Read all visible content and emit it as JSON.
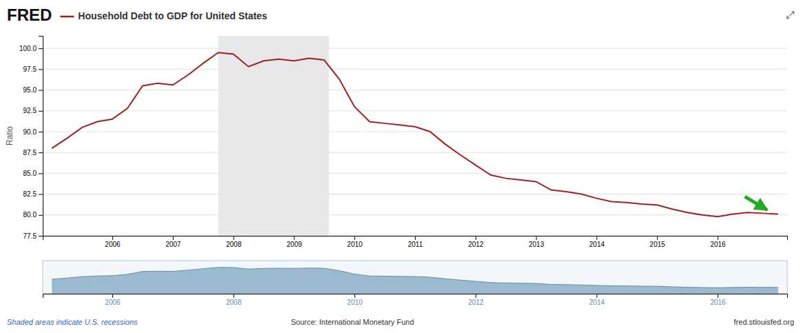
{
  "chart_data": [
    {
      "type": "line",
      "title": "Household Debt to GDP for United States",
      "ylabel": "Ratio",
      "x": [
        2005.0,
        2005.25,
        2005.5,
        2005.75,
        2006.0,
        2006.25,
        2006.5,
        2006.75,
        2007.0,
        2007.25,
        2007.5,
        2007.75,
        2008.0,
        2008.25,
        2008.5,
        2008.75,
        2009.0,
        2009.25,
        2009.5,
        2009.75,
        2010.0,
        2010.25,
        2010.5,
        2010.75,
        2011.0,
        2011.25,
        2011.5,
        2011.75,
        2012.0,
        2012.25,
        2012.5,
        2012.75,
        2013.0,
        2013.25,
        2013.5,
        2013.75,
        2014.0,
        2014.25,
        2014.5,
        2014.75,
        2015.0,
        2015.25,
        2015.5,
        2015.75,
        2016.0,
        2016.25,
        2016.5,
        2016.75,
        2017.0
      ],
      "values": [
        88.0,
        89.2,
        90.5,
        91.2,
        91.5,
        92.8,
        95.5,
        95.8,
        95.6,
        96.8,
        98.2,
        99.5,
        99.3,
        97.8,
        98.5,
        98.7,
        98.5,
        98.8,
        98.6,
        96.3,
        93.0,
        91.2,
        91.0,
        90.8,
        90.6,
        90.0,
        88.5,
        87.2,
        86.0,
        84.8,
        84.4,
        84.2,
        84.0,
        83.0,
        82.8,
        82.5,
        82.0,
        81.6,
        81.5,
        81.3,
        81.2,
        80.7,
        80.3,
        80.0,
        79.8,
        80.1,
        80.3,
        80.2,
        80.1
      ],
      "color": "#a02020",
      "xlim": [
        2004.85,
        2017.15
      ],
      "xticks": [
        2006,
        2007,
        2008,
        2009,
        2010,
        2011,
        2012,
        2013,
        2014,
        2015,
        2016
      ],
      "ylim": [
        77.5,
        101.5
      ],
      "yticks": [
        77.5,
        {
          "value": 80.0,
          "label": "80.0"
        },
        82.5,
        {
          "value": 85.0,
          "label": "85.0"
        },
        87.5,
        {
          "value": 90.0,
          "label": "90.0"
        },
        92.5,
        {
          "value": 95.0,
          "label": "95.0"
        },
        97.5,
        {
          "value": 100.0,
          "label": "100.0"
        }
      ],
      "grid": true,
      "recessions": [
        {
          "start": 2007.75,
          "end": 2009.58,
          "color": "#e8e8e8"
        }
      ],
      "arrow": {
        "x1": 2016.45,
        "y1": 82.2,
        "x2": 2016.82,
        "y2": 80.6,
        "color": "#22aa22"
      },
      "annotations": {
        "brand": "FRED",
        "icon": "⤢",
        "note": "Shaded areas indicate U.S. recessions",
        "source": "Source: International Monetary Fund",
        "website": "fred.stlouisfed.org"
      }
    },
    {
      "type": "area",
      "x": [
        2005.0,
        2005.25,
        2005.5,
        2005.75,
        2006.0,
        2006.25,
        2006.5,
        2006.75,
        2007.0,
        2007.25,
        2007.5,
        2007.75,
        2008.0,
        2008.25,
        2008.5,
        2008.75,
        2009.0,
        2009.25,
        2009.5,
        2009.75,
        2010.0,
        2010.25,
        2010.5,
        2010.75,
        2011.0,
        2011.25,
        2011.5,
        2011.75,
        2012.0,
        2012.25,
        2012.5,
        2012.75,
        2013.0,
        2013.25,
        2013.5,
        2013.75,
        2014.0,
        2014.25,
        2014.5,
        2014.75,
        2015.0,
        2015.25,
        2015.5,
        2015.75,
        2016.0,
        2016.25,
        2016.5,
        2016.75,
        2017.0
      ],
      "values": [
        88.0,
        89.2,
        90.5,
        91.2,
        91.5,
        92.8,
        95.5,
        95.8,
        95.6,
        96.8,
        98.2,
        99.5,
        99.3,
        97.8,
        98.5,
        98.7,
        98.5,
        98.8,
        98.6,
        96.3,
        93.0,
        91.2,
        91.0,
        90.8,
        90.6,
        90.0,
        88.5,
        87.2,
        86.0,
        84.8,
        84.4,
        84.2,
        84.0,
        83.0,
        82.8,
        82.5,
        82.0,
        81.6,
        81.5,
        81.3,
        81.2,
        80.7,
        80.3,
        80.0,
        79.8,
        80.1,
        80.3,
        80.2,
        80.1
      ],
      "color": "#8aafc8",
      "xlim": [
        2004.85,
        2017.15
      ],
      "ylim": [
        74,
        106
      ],
      "xticks": [
        2006,
        2008,
        2010,
        2012,
        2014,
        2016
      ],
      "tick_labels": "x"
    }
  ]
}
